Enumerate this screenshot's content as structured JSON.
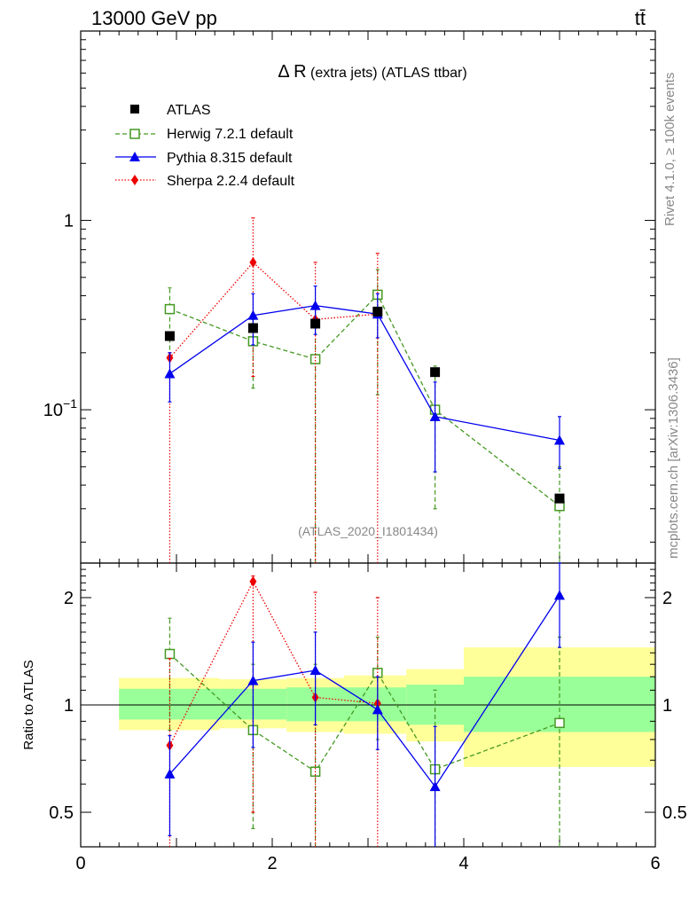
{
  "header": {
    "energy_label": "13000 GeV pp",
    "process_label": "tt̄"
  },
  "side_text": {
    "rivet": "Rivet 4.1.0, ≥ 100k events",
    "mcplots": "mcplots.cern.ch [arXiv:1306.3436]"
  },
  "chart_data": {
    "type": "scatter",
    "title_main": "Δ R",
    "title_rest": " (extra jets) (ATLAS ttbar)",
    "analysis_id": "(ATLAS_2020_I1801434)",
    "xlim": [
      0,
      6
    ],
    "x_ticks": [
      {
        "v": 0,
        "label": "0"
      },
      {
        "v": 2,
        "label": "2"
      },
      {
        "v": 4,
        "label": "4"
      },
      {
        "v": 6,
        "label": "6"
      }
    ],
    "main": {
      "yscale": "log",
      "ylim": [
        0.0155,
        10.0
      ],
      "y_tick_labels": [
        {
          "v": 1,
          "label": "1"
        },
        {
          "v": 0.1,
          "label": "10",
          "exp": "−1"
        }
      ]
    },
    "ratio": {
      "ylabel": "Ratio to ATLAS",
      "yscale": "log",
      "ylim": [
        0.4,
        2.5
      ],
      "y_tick_labels": [
        {
          "v": 0.5,
          "label": "0.5"
        },
        {
          "v": 1,
          "label": "1"
        },
        {
          "v": 2,
          "label": "2"
        }
      ],
      "uncertainty_bands": [
        {
          "x0": 0.4,
          "x1": 1.45,
          "inner": [
            0.91,
            1.11
          ],
          "outer": [
            0.85,
            1.19
          ]
        },
        {
          "x0": 1.45,
          "x1": 2.15,
          "inner": [
            0.91,
            1.11
          ],
          "outer": [
            0.86,
            1.18
          ]
        },
        {
          "x0": 2.15,
          "x1": 2.75,
          "inner": [
            0.9,
            1.12
          ],
          "outer": [
            0.84,
            1.19
          ]
        },
        {
          "x0": 2.75,
          "x1": 3.4,
          "inner": [
            0.9,
            1.12
          ],
          "outer": [
            0.83,
            1.21
          ]
        },
        {
          "x0": 3.4,
          "x1": 4.0,
          "inner": [
            0.88,
            1.14
          ],
          "outer": [
            0.79,
            1.26
          ]
        },
        {
          "x0": 4.0,
          "x1": 6.0,
          "inner": [
            0.84,
            1.2
          ],
          "outer": [
            0.67,
            1.45
          ]
        }
      ]
    },
    "series": [
      {
        "name": "ATLAS",
        "color": "#000000",
        "marker": "square-filled",
        "line": "none",
        "x": [
          0.93,
          1.8,
          2.45,
          3.1,
          3.7,
          5.0
        ],
        "y": [
          0.245,
          0.27,
          0.285,
          0.33,
          0.158,
          0.034
        ],
        "ratio": [
          1,
          1,
          1,
          1,
          1,
          1
        ]
      },
      {
        "name": "Herwig 7.2.1 default",
        "color": "#449922",
        "marker": "square-open",
        "line": "dashed",
        "x": [
          0.93,
          1.8,
          2.45,
          3.1,
          3.7,
          5.0
        ],
        "y": [
          0.34,
          0.23,
          0.185,
          0.405,
          0.1,
          0.031
        ],
        "yerr_low": [
          0.19,
          0.13,
          0.0,
          0.12,
          0.03,
          0.0
        ],
        "yerr_high": [
          0.44,
          0.3,
          0.36,
          0.55,
          0.17,
          0.05
        ],
        "ratio": [
          1.39,
          0.85,
          0.65,
          1.23,
          0.66,
          0.89
        ],
        "ratio_low": [
          0.85,
          0.45,
          0.0,
          0.8,
          0.0,
          0.0
        ],
        "ratio_high": [
          1.75,
          1.3,
          1.3,
          1.55,
          1.1,
          1.55
        ]
      },
      {
        "name": "Pythia 8.315 default",
        "color": "#0000ee",
        "marker": "triangle",
        "line": "solid",
        "x": [
          0.93,
          1.8,
          2.45,
          3.1,
          3.7,
          5.0
        ],
        "y": [
          0.155,
          0.315,
          0.355,
          0.32,
          0.092,
          0.069
        ],
        "yerr_low": [
          0.11,
          0.22,
          0.25,
          0.24,
          0.047,
          0.049
        ],
        "yerr_high": [
          0.2,
          0.41,
          0.45,
          0.41,
          0.14,
          0.092
        ],
        "ratio": [
          0.64,
          1.17,
          1.25,
          0.97,
          0.59,
          2.03
        ],
        "ratio_low": [
          0.43,
          0.76,
          0.88,
          0.75,
          0.0,
          1.45
        ],
        "ratio_high": [
          0.82,
          1.5,
          1.6,
          1.2,
          0.87,
          2.5
        ]
      },
      {
        "name": "Sherpa 2.2.4 default",
        "color": "#ee0000",
        "marker": "diamond",
        "line": "dotted",
        "x": [
          0.93,
          1.8,
          3.1,
          2.45
        ],
        "y": [
          0.188,
          0.6,
          0.32,
          0.3
        ],
        "yerr_low": [
          0.0,
          0.15,
          0.0,
          0.0
        ],
        "yerr_high": [
          0.2,
          1.03,
          0.67,
          0.6
        ],
        "ratio": [
          0.77,
          2.22,
          1.01,
          1.05
        ],
        "ratio_low": [
          0.0,
          0.5,
          0.0,
          0.0
        ],
        "ratio_high": [
          1.35,
          2.3,
          2.0,
          2.07
        ]
      }
    ]
  }
}
